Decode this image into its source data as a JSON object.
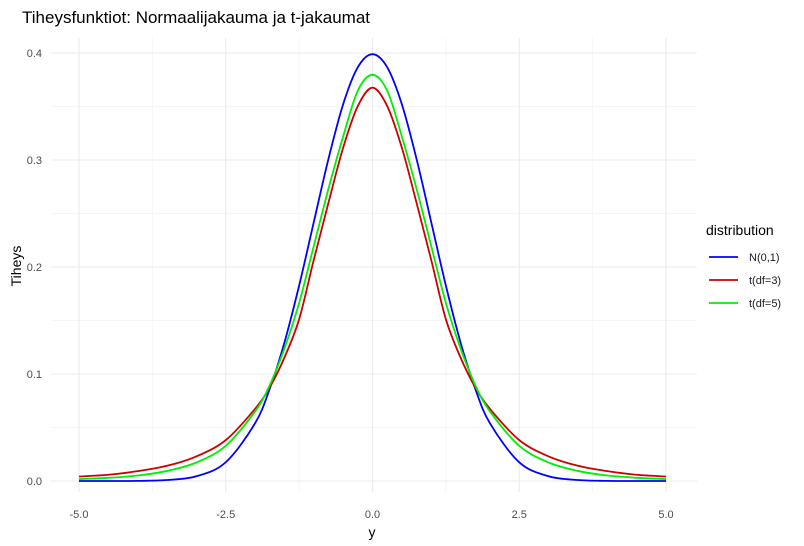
{
  "chart_data": {
    "type": "line",
    "title": "Tiheysfunktiot: Normaalijakauma ja t-jakaumat",
    "xlabel": "y",
    "ylabel": "Tiheys",
    "xlim": [
      -5.0,
      5.0
    ],
    "ylim": [
      0,
      0.4
    ],
    "x_ticks": [
      -5.0,
      -2.5,
      0.0,
      2.5,
      5.0
    ],
    "x_tick_labels": [
      "-5.0",
      "-2.5",
      "0.0",
      "2.5",
      "5.0"
    ],
    "y_ticks": [
      0.0,
      0.1,
      0.2,
      0.3,
      0.4
    ],
    "y_tick_labels": [
      "0.0",
      "0.1",
      "0.2",
      "0.3",
      "0.4"
    ],
    "grid": true,
    "legend": {
      "title": "distribution",
      "position": "right"
    },
    "x": [
      -5,
      -4.5,
      -4,
      -3.5,
      -3,
      -2.5,
      -2,
      -1.75,
      -1.5,
      -1.25,
      -1,
      -0.75,
      -0.5,
      -0.25,
      0,
      0.25,
      0.5,
      0.75,
      1,
      1.25,
      1.5,
      1.75,
      2,
      2.5,
      3,
      3.5,
      4,
      4.5,
      5
    ],
    "series": [
      {
        "name": "N(0,1)",
        "color": "#0000ff",
        "values": [
          0.0,
          0.0,
          0.0001,
          0.0009,
          0.0044,
          0.0175,
          0.054,
          0.0863,
          0.1295,
          0.1826,
          0.242,
          0.3011,
          0.3521,
          0.3867,
          0.3989,
          0.3867,
          0.3521,
          0.3011,
          0.242,
          0.1826,
          0.1295,
          0.0863,
          0.054,
          0.0175,
          0.0044,
          0.0009,
          0.0001,
          0.0,
          0.0
        ]
      },
      {
        "name": "t(df=3)",
        "color": "#cc0000",
        "values": [
          0.0042,
          0.0058,
          0.0092,
          0.0142,
          0.023,
          0.0382,
          0.0675,
          0.0876,
          0.1154,
          0.1511,
          0.2067,
          0.2601,
          0.3114,
          0.3504,
          0.3676,
          0.3504,
          0.3114,
          0.2601,
          0.2067,
          0.1511,
          0.1154,
          0.0876,
          0.0675,
          0.0382,
          0.023,
          0.0142,
          0.0092,
          0.0058,
          0.0042
        ]
      },
      {
        "name": "t(df=5)",
        "color": "#00ee00",
        "values": [
          0.0018,
          0.003,
          0.0051,
          0.0094,
          0.0173,
          0.0329,
          0.0651,
          0.0896,
          0.124,
          0.1664,
          0.2197,
          0.2732,
          0.322,
          0.3648,
          0.3796,
          0.3648,
          0.322,
          0.2732,
          0.2197,
          0.1664,
          0.124,
          0.0896,
          0.0651,
          0.0329,
          0.0173,
          0.0094,
          0.0051,
          0.003,
          0.0018
        ]
      }
    ]
  }
}
